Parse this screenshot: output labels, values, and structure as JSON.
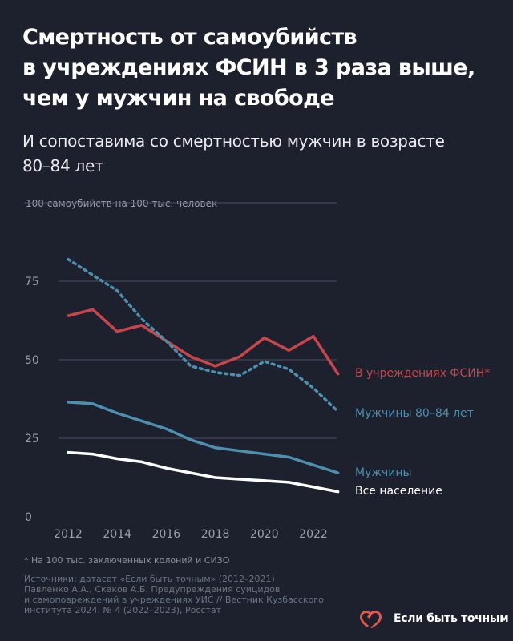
{
  "header": {
    "title_lines": [
      "Смертность от самоубийств",
      "в учреждениях ФСИН в 3 раза выше,",
      "чем у мужчин на свободе"
    ],
    "subtitle_lines": [
      "И сопоставима со смертностью мужчин в возрасте",
      "80–84 лет"
    ]
  },
  "chart_data": {
    "type": "line",
    "ylabel": "100 самоубийств на 100 тыс. человек",
    "xlim": [
      2011.85,
      2023.1
    ],
    "ylim": [
      0,
      100
    ],
    "x_ticks": [
      2012,
      2014,
      2016,
      2018,
      2020,
      2022
    ],
    "y_ticks": [
      0,
      25,
      50,
      75
    ],
    "y_tick_labels": [
      "0",
      "25",
      "50",
      "75"
    ],
    "x_tick_labels": [
      "2012",
      "2014",
      "2016",
      "2018",
      "2020",
      "2022"
    ],
    "x": [
      2012,
      2013,
      2014,
      2015,
      2016,
      2017,
      2018,
      2019,
      2020,
      2021,
      2022,
      2023
    ],
    "series": [
      {
        "name": "В учреждениях ФСИН*",
        "color": "#c8464b",
        "style": "solid",
        "values": [
          64.0,
          66.0,
          59.0,
          61.0,
          56.0,
          51.0,
          48.0,
          51.0,
          57.0,
          53.0,
          57.5,
          45.5
        ]
      },
      {
        "name": "Мужчины 80–84 лет",
        "color": "#4d8fae",
        "style": "dotted",
        "values": [
          82.0,
          77.0,
          72.0,
          63.0,
          56.0,
          48.0,
          46.0,
          45.0,
          49.5,
          47.0,
          41.0,
          33.5
        ]
      },
      {
        "name": "Мужчины",
        "color": "#4d8fae",
        "style": "solid",
        "values": [
          36.5,
          36.0,
          33.0,
          30.5,
          28.0,
          24.5,
          22.0,
          21.0,
          20.0,
          19.0,
          16.5,
          14.0
        ]
      },
      {
        "name": "Все население",
        "color": "#ffffff",
        "style": "solid",
        "values": [
          20.5,
          20.0,
          18.5,
          17.5,
          15.5,
          14.0,
          12.5,
          12.0,
          11.5,
          11.0,
          9.5,
          8.0
        ]
      }
    ],
    "grid": true
  },
  "footnote": "* На 100 тыс. заключенных колоний и СИЗО",
  "sources_lines": [
    "Источники: датасет «Если быть точным» (2012–2021)",
    "Павленко А.А., Скаков А.Б. Предупреждения суицидов",
    "и самоповреждений в учреждениях УИС // Вестник Кузбасского",
    "института 2024. № 4 (2022–2023), Росстат"
  ],
  "brand": {
    "name": "Если быть точным",
    "logo_icon": "heart-logo-icon",
    "logo_color": "#e4584b"
  },
  "colors": {
    "background": "#1c212d",
    "grid": "#4a5060",
    "axis_text": "#9aa0ab"
  }
}
